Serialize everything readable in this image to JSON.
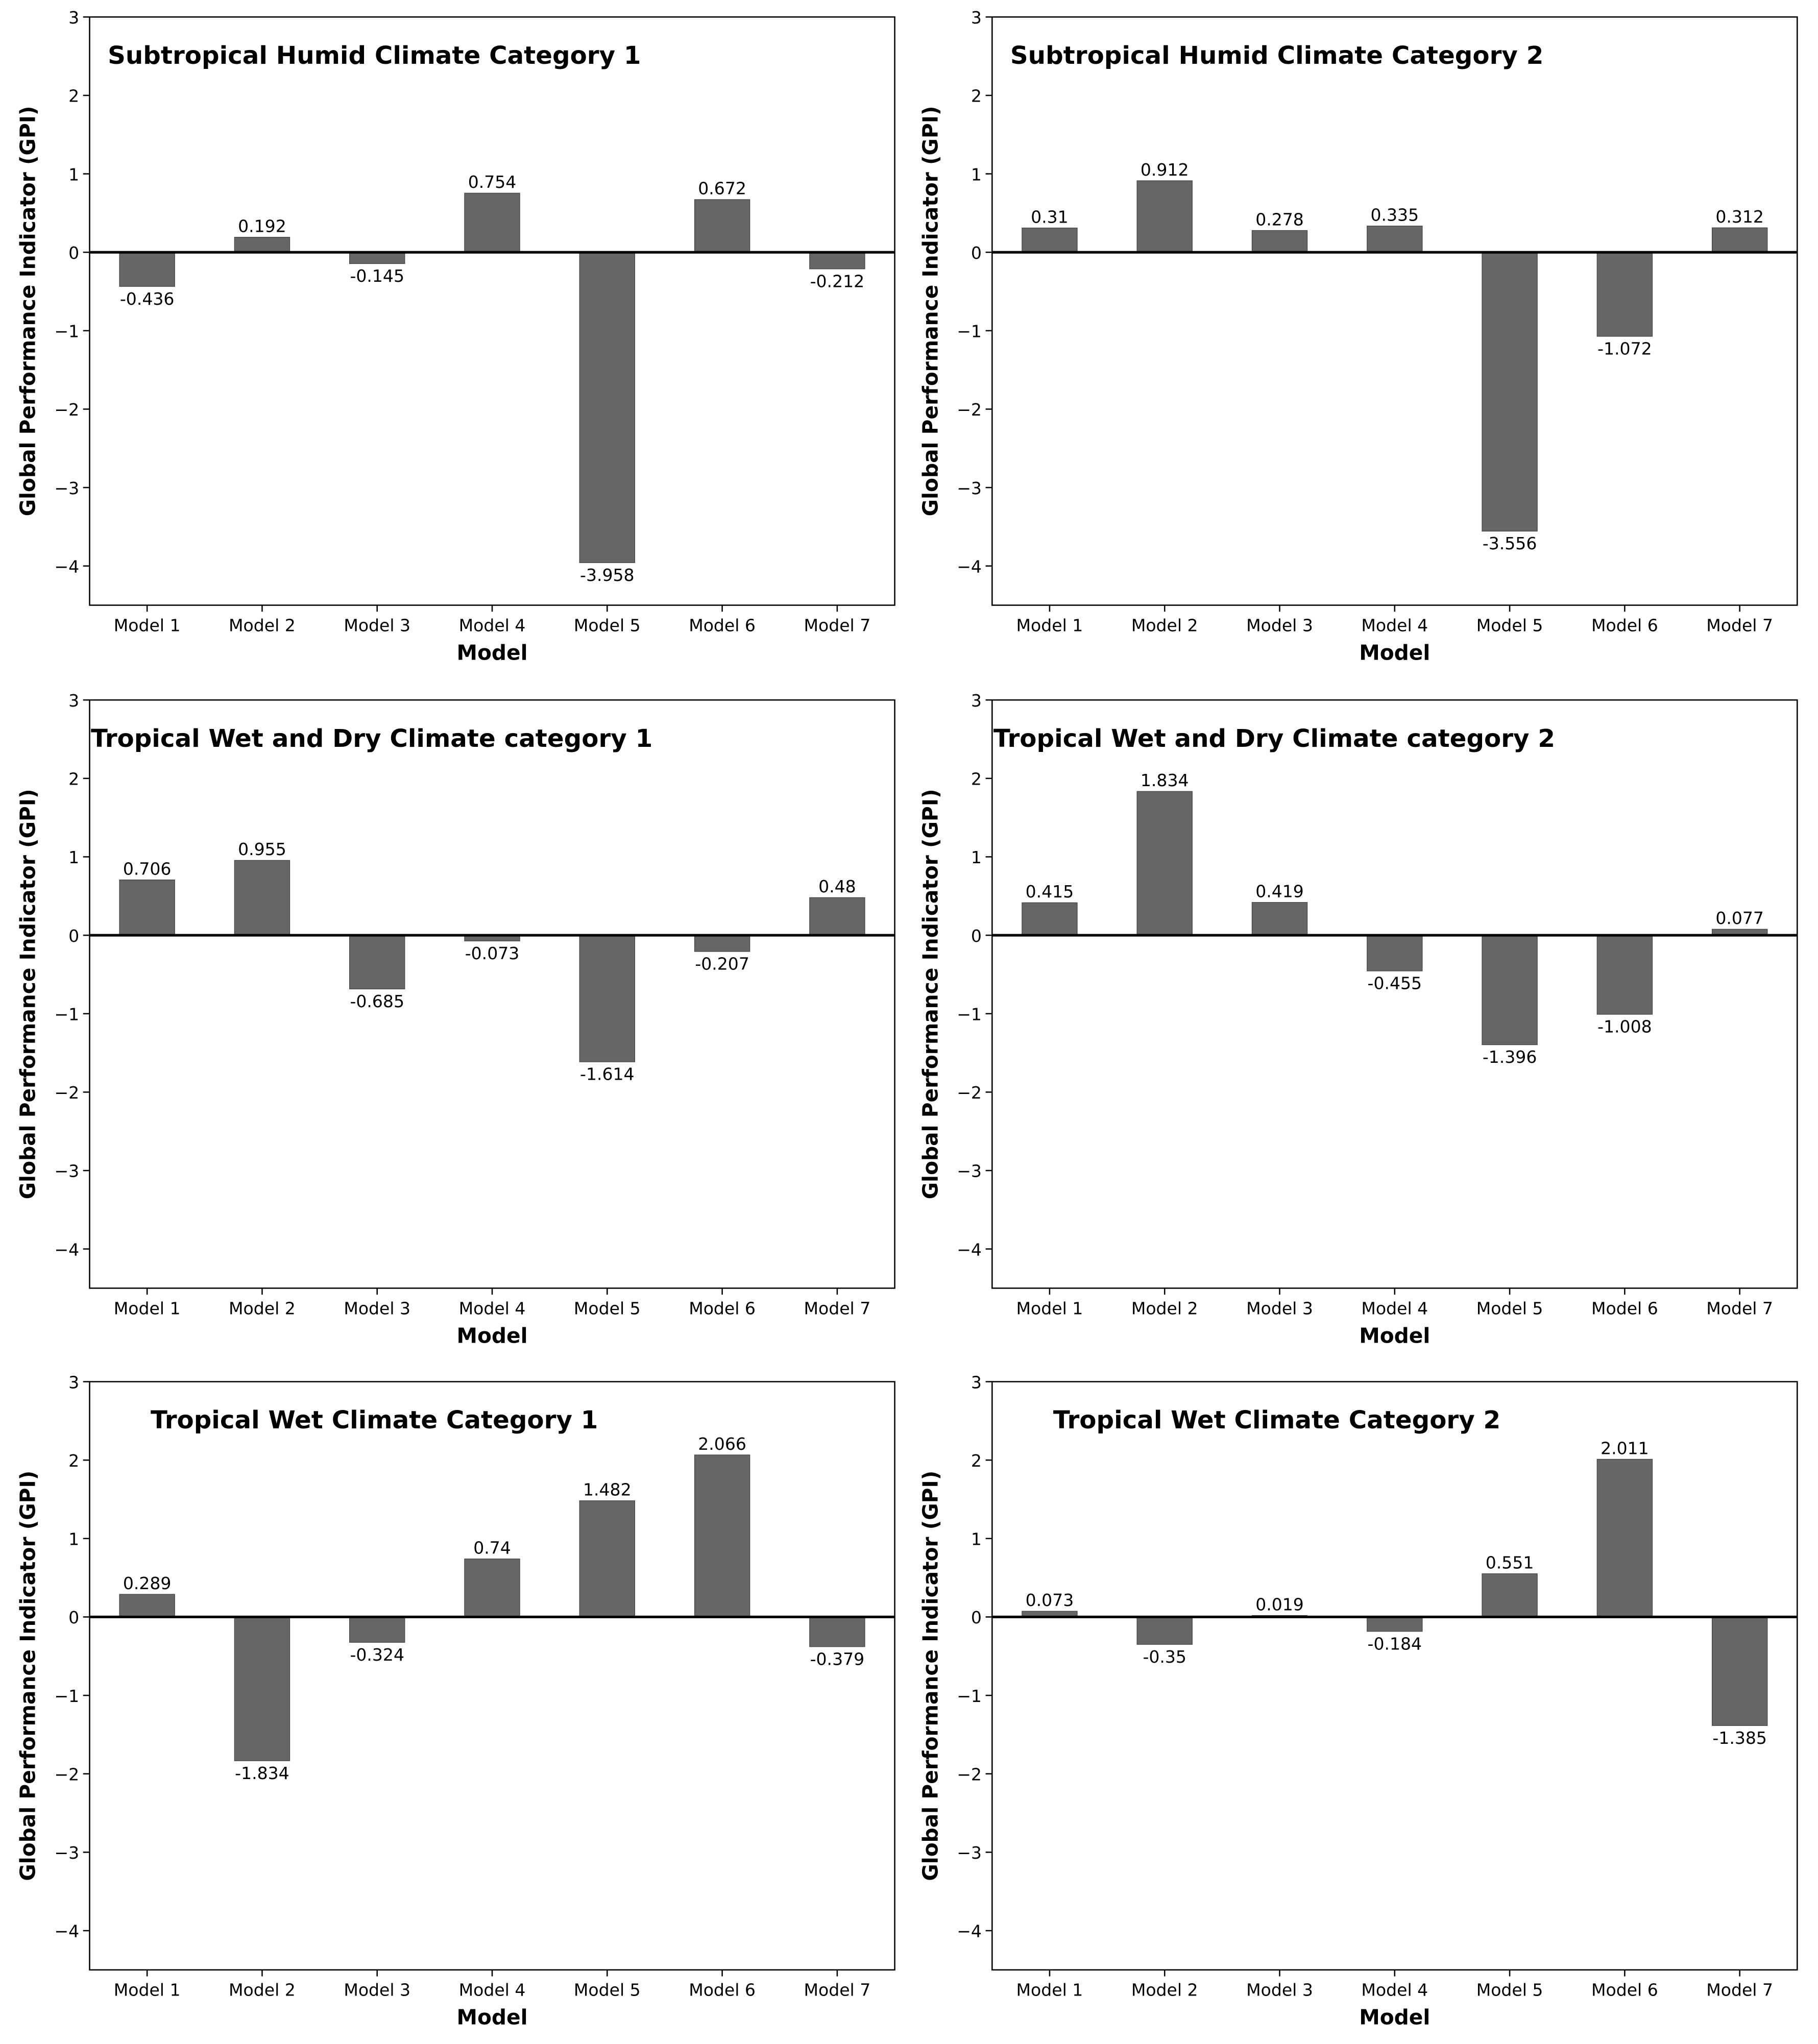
{
  "chart_data": [
    {
      "type": "bar",
      "title": "Subtropical Humid Climate Category 1",
      "x_label": "Model",
      "y_label": "Global Performance Indicator (GPI)",
      "categories": [
        "Model 1",
        "Model 2",
        "Model 3",
        "Model 4",
        "Model 5",
        "Model 6",
        "Model 7"
      ],
      "values": [
        -0.436,
        0.192,
        -0.145,
        0.754,
        -3.958,
        0.672,
        -0.212
      ],
      "color": "#666666",
      "ylim": [
        -4.5,
        3
      ],
      "yticks": [
        {
          "value": -4,
          "label": "−4"
        },
        {
          "value": -3,
          "label": "−3"
        },
        {
          "value": -2,
          "label": "−2"
        },
        {
          "value": -1,
          "label": "−1"
        },
        0,
        1,
        2,
        3
      ]
    },
    {
      "type": "bar",
      "title": "Subtropical Humid Climate Category 2",
      "x_label": "Model",
      "y_label": "Global Performance Indicator (GPI)",
      "categories": [
        "Model 1",
        "Model 2",
        "Model 3",
        "Model 4",
        "Model 5",
        "Model 6",
        "Model 7"
      ],
      "values": [
        0.31,
        0.912,
        0.278,
        0.335,
        -3.556,
        -1.072,
        0.312
      ],
      "color": "#666666",
      "ylim": [
        -4.5,
        3
      ],
      "yticks": [
        {
          "value": -4,
          "label": "−4"
        },
        {
          "value": -3,
          "label": "−3"
        },
        {
          "value": -2,
          "label": "−2"
        },
        {
          "value": -1,
          "label": "−1"
        },
        0,
        1,
        2,
        3
      ]
    },
    {
      "type": "bar",
      "title": "Tropical Wet and Dry Climate category 1",
      "x_label": "Model",
      "y_label": "Global Performance Indicator (GPI)",
      "categories": [
        "Model 1",
        "Model 2",
        "Model 3",
        "Model 4",
        "Model 5",
        "Model 6",
        "Model 7"
      ],
      "values": [
        0.706,
        0.955,
        -0.685,
        -0.073,
        -1.614,
        -0.207,
        0.48
      ],
      "color": "#666666",
      "ylim": [
        -4.5,
        3
      ],
      "yticks": [
        {
          "value": -4,
          "label": "−4"
        },
        {
          "value": -3,
          "label": "−3"
        },
        {
          "value": -2,
          "label": "−2"
        },
        {
          "value": -1,
          "label": "−1"
        },
        0,
        1,
        2,
        3
      ]
    },
    {
      "type": "bar",
      "title": "Tropical Wet and Dry Climate category 2",
      "x_label": "Model",
      "y_label": "Global Performance Indicator (GPI)",
      "categories": [
        "Model 1",
        "Model 2",
        "Model 3",
        "Model 4",
        "Model 5",
        "Model 6",
        "Model 7"
      ],
      "values": [
        0.415,
        1.834,
        0.419,
        -0.455,
        -1.396,
        -1.008,
        0.077
      ],
      "color": "#666666",
      "ylim": [
        -4.5,
        3
      ],
      "yticks": [
        {
          "value": -4,
          "label": "−4"
        },
        {
          "value": -3,
          "label": "−3"
        },
        {
          "value": -2,
          "label": "−2"
        },
        {
          "value": -1,
          "label": "−1"
        },
        0,
        1,
        2,
        3
      ]
    },
    {
      "type": "bar",
      "title": "Tropical Wet Climate Category 1",
      "x_label": "Model",
      "y_label": "Global Performance Indicator (GPI)",
      "categories": [
        "Model 1",
        "Model 2",
        "Model 3",
        "Model 4",
        "Model 5",
        "Model 6",
        "Model 7"
      ],
      "values": [
        0.289,
        -1.834,
        -0.324,
        0.74,
        1.482,
        2.066,
        -0.379
      ],
      "color": "#666666",
      "ylim": [
        -4.5,
        3
      ],
      "yticks": [
        {
          "value": -4,
          "label": "−4"
        },
        {
          "value": -3,
          "label": "−3"
        },
        {
          "value": -2,
          "label": "−2"
        },
        {
          "value": -1,
          "label": "−1"
        },
        0,
        1,
        2,
        3
      ]
    },
    {
      "type": "bar",
      "title": "Tropical Wet Climate Category 2",
      "x_label": "Model",
      "y_label": "Global Performance Indicator (GPI)",
      "categories": [
        "Model 1",
        "Model 2",
        "Model 3",
        "Model 4",
        "Model 5",
        "Model 6",
        "Model 7"
      ],
      "values": [
        0.073,
        -0.35,
        0.019,
        -0.184,
        0.551,
        2.011,
        -1.385
      ],
      "color": "#666666",
      "ylim": [
        -4.5,
        3
      ],
      "yticks": [
        {
          "value": -4,
          "label": "−4"
        },
        {
          "value": -3,
          "label": "−3"
        },
        {
          "value": -2,
          "label": "−2"
        },
        {
          "value": -1,
          "label": "−1"
        },
        0,
        1,
        2,
        3
      ]
    }
  ]
}
